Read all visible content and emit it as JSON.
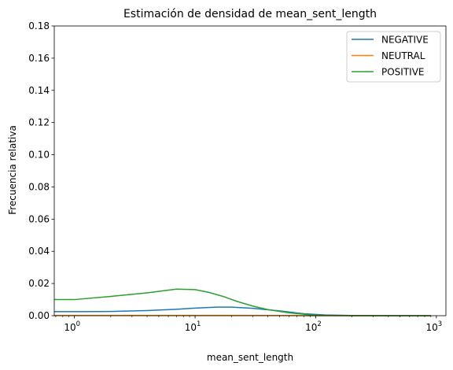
{
  "chart_data": {
    "type": "line",
    "title": "Estimación de densidad de mean_sent_length",
    "xlabel": "mean_sent_length",
    "ylabel": "Frecuencia relativa",
    "xscale": "log",
    "xlim": [
      0.68,
      1200
    ],
    "ylim": [
      0,
      0.18
    ],
    "yticks": [
      "0.00",
      "0.02",
      "0.04",
      "0.06",
      "0.08",
      "0.10",
      "0.12",
      "0.14",
      "0.16",
      "0.18"
    ],
    "xticks": [
      {
        "base": "10",
        "exp": "0",
        "value": 1
      },
      {
        "base": "10",
        "exp": "1",
        "value": 10
      },
      {
        "base": "10",
        "exp": "2",
        "value": 100
      },
      {
        "base": "10",
        "exp": "3",
        "value": 1000
      }
    ],
    "grid": false,
    "legend_position": "top-right",
    "series": [
      {
        "name": "NEGATIVE",
        "color": "#1f77b4",
        "x": [
          0.68,
          1,
          2,
          4,
          7,
          10,
          15,
          20,
          30,
          50,
          80,
          120,
          200,
          500,
          900
        ],
        "y": [
          0.0025,
          0.0025,
          0.0026,
          0.0032,
          0.004,
          0.0047,
          0.0053,
          0.0053,
          0.0046,
          0.003,
          0.0012,
          0.0004,
          0.0001,
          0.0,
          0.0
        ]
      },
      {
        "name": "NEUTRAL",
        "color": "#ff7f0e",
        "x": [
          0.68,
          1,
          10,
          30,
          60,
          100,
          200,
          500,
          900
        ],
        "y": [
          0.0002,
          0.0002,
          0.0002,
          0.0002,
          0.0001,
          0.0,
          0.0,
          0.0,
          0.0
        ]
      },
      {
        "name": "POSITIVE",
        "color": "#2ca02c",
        "x": [
          0.68,
          1,
          2,
          4,
          7,
          10,
          13,
          17,
          22,
          30,
          40,
          60,
          90,
          130,
          200,
          500,
          900
        ],
        "y": [
          0.01,
          0.01,
          0.012,
          0.0142,
          0.0165,
          0.0162,
          0.0145,
          0.012,
          0.009,
          0.006,
          0.0038,
          0.0018,
          0.0005,
          0.0001,
          0.0,
          0.0,
          0.0
        ]
      }
    ]
  }
}
